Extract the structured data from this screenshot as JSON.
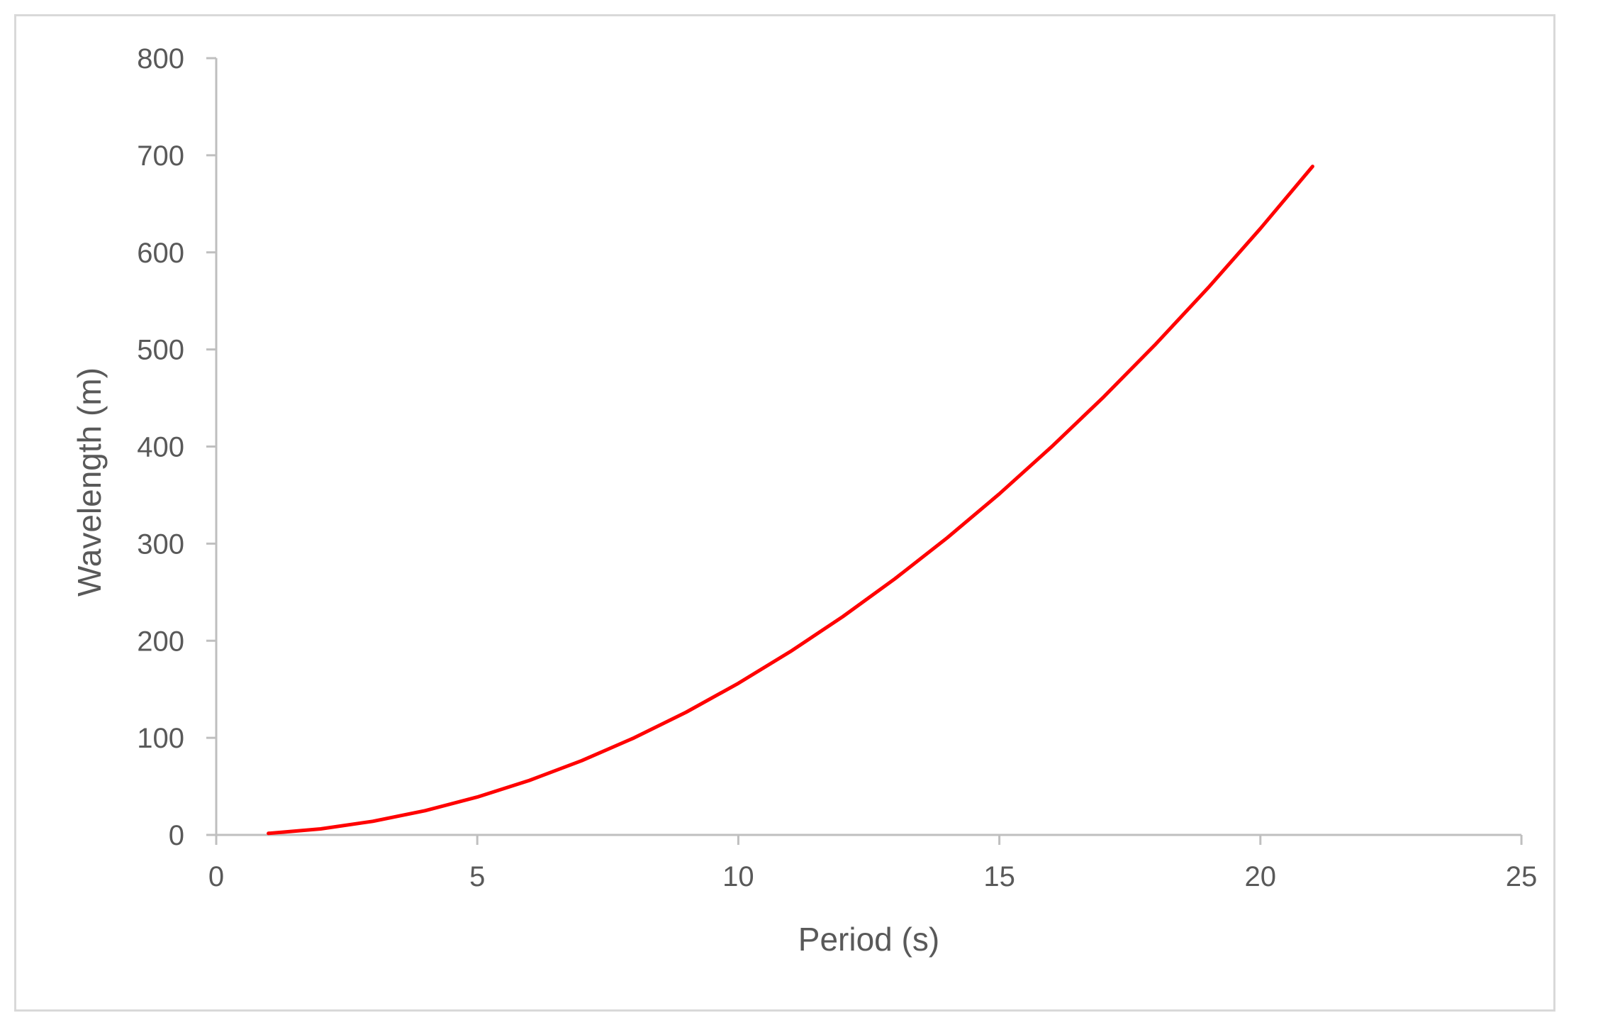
{
  "chart_data": {
    "type": "line",
    "title": "",
    "xlabel": "Period (s)",
    "ylabel": "Wavelength (m)",
    "xlim": [
      0,
      25
    ],
    "ylim": [
      0,
      800
    ],
    "xticks": [
      0,
      5,
      10,
      15,
      20,
      25
    ],
    "yticks": [
      0,
      100,
      200,
      300,
      400,
      500,
      600,
      700,
      800
    ],
    "grid": false,
    "legend": "none",
    "series": [
      {
        "color": "#ff0000",
        "x": [
          1,
          2,
          3,
          4,
          5,
          6,
          7,
          8,
          9,
          10,
          11,
          12,
          13,
          14,
          15,
          16,
          17,
          18,
          19,
          20,
          21
        ],
        "y": [
          1.6,
          6.2,
          14.0,
          25.0,
          39.0,
          56.2,
          76.5,
          99.9,
          126.4,
          156.1,
          188.9,
          224.8,
          263.8,
          306.0,
          351.3,
          399.7,
          451.2,
          505.8,
          563.6,
          624.5,
          688.5
        ]
      }
    ]
  }
}
